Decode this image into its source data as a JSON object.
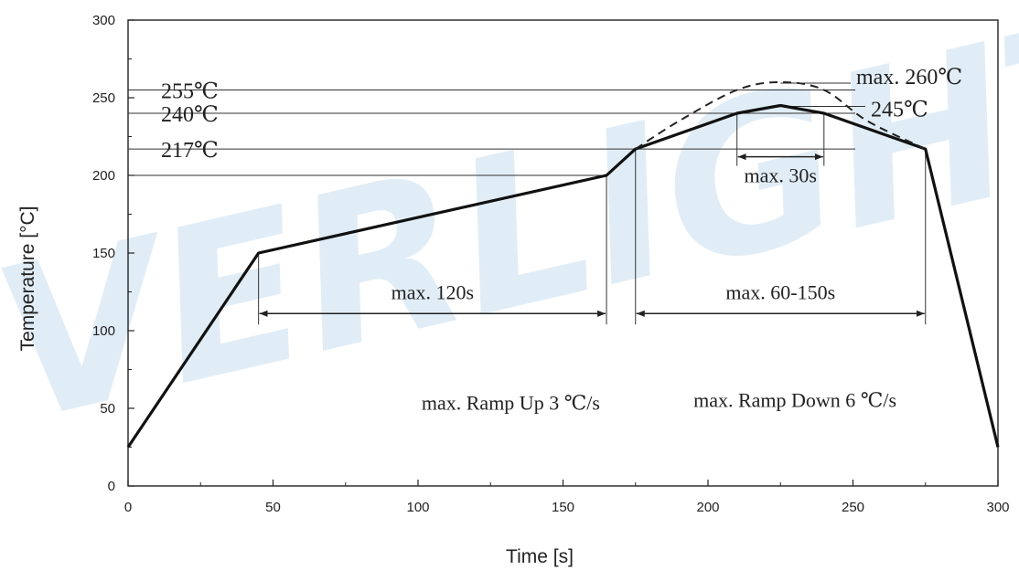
{
  "watermark": "EVERLIGHT",
  "chart_data": {
    "type": "line",
    "xlabel": "Time [s]",
    "ylabel": "Temperature [°C]",
    "xlim": [
      0,
      300
    ],
    "ylim": [
      0,
      300
    ],
    "xticks": [
      "0",
      "50",
      "100",
      "150",
      "200",
      "250",
      "300"
    ],
    "yticks": [
      "0",
      "50",
      "100",
      "150",
      "200",
      "250",
      "300"
    ],
    "grid": false,
    "series": [
      {
        "style": "solid",
        "x": [
          0,
          45,
          165,
          175,
          210,
          225,
          240,
          275,
          300
        ],
        "y": [
          25,
          150,
          200,
          217,
          240,
          245,
          240,
          217,
          25
        ]
      },
      {
        "style": "dashed",
        "x": [
          175,
          190,
          210,
          225,
          240,
          255,
          275
        ],
        "y": [
          217,
          235,
          255,
          260,
          255,
          235,
          217
        ]
      }
    ],
    "reference_lines": [
      {
        "label": "255℃",
        "y": 255
      },
      {
        "label": "240℃",
        "y": 240
      },
      {
        "label": "217℃",
        "y": 217
      },
      {
        "label": "",
        "y": 200
      }
    ],
    "peak_labels": [
      {
        "label": "max. 260℃",
        "x": 225,
        "y": 260
      },
      {
        "label": "245℃",
        "x": 225,
        "y": 245
      }
    ],
    "spans": [
      {
        "label": "max. 120s",
        "x1": 45,
        "x2": 165,
        "y": 111
      },
      {
        "label": "max. 60-150s",
        "x1": 175,
        "x2": 275,
        "y": 111
      },
      {
        "label": "max. 30s",
        "x1": 210,
        "x2": 240,
        "y": 212
      }
    ],
    "annotations": [
      {
        "text": "max. Ramp Up 3 ℃/s",
        "x": 132,
        "y": 49
      },
      {
        "text": "max. Ramp Down 6 ℃/s",
        "x": 230,
        "y": 51
      }
    ]
  }
}
